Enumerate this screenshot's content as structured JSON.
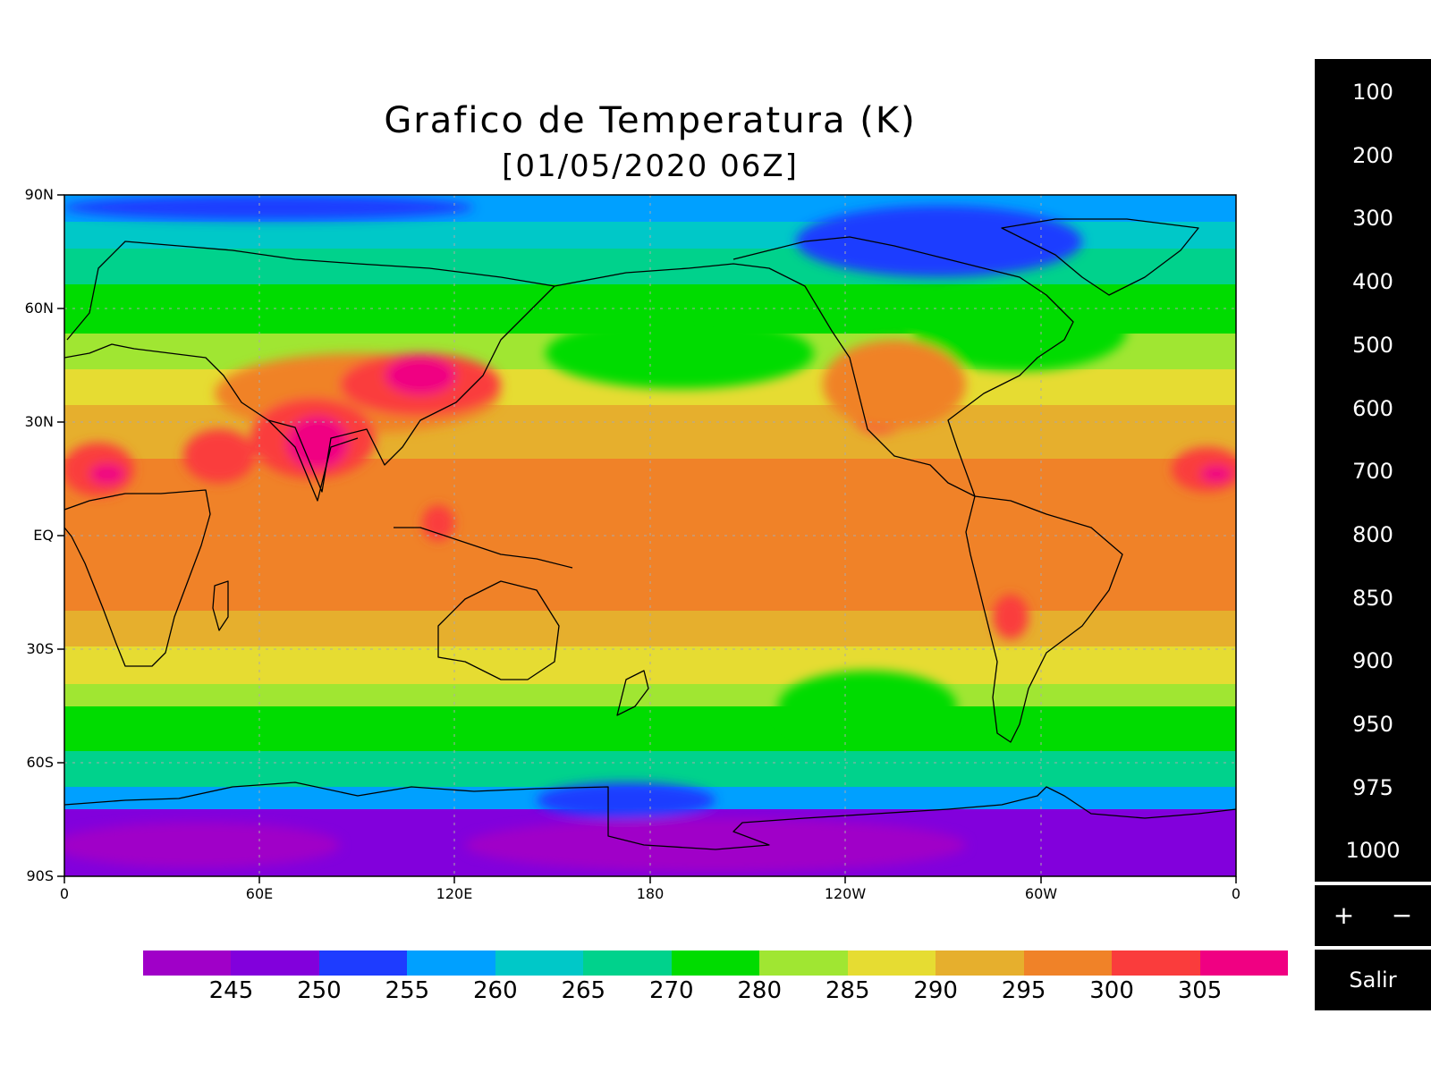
{
  "title": "Grafico de Temperatura (K)",
  "subtitle": "[01/05/2020 06Z]",
  "lat_labels": [
    "90N",
    "60N",
    "30N",
    "EQ",
    "30S",
    "60S",
    "90S"
  ],
  "lon_labels": [
    "0",
    "60E",
    "120E",
    "180",
    "120W",
    "60W",
    "0"
  ],
  "colorbar": {
    "colors": [
      "#a000c8",
      "#8200dc",
      "#1e3cff",
      "#00a0ff",
      "#00c8c8",
      "#00d28c",
      "#00dc00",
      "#a0e632",
      "#e6dc32",
      "#e6af2d",
      "#f08228",
      "#fa3c3c",
      "#f00082"
    ],
    "labels": [
      "245",
      "250",
      "255",
      "260",
      "265",
      "270",
      "280",
      "285",
      "290",
      "295",
      "300",
      "305"
    ]
  },
  "levels": [
    "100",
    "200",
    "300",
    "400",
    "500",
    "600",
    "700",
    "800",
    "850",
    "900",
    "950",
    "975",
    "1000"
  ],
  "zoom": {
    "plus": "+",
    "minus": "−"
  },
  "exit_label": "Salir"
}
